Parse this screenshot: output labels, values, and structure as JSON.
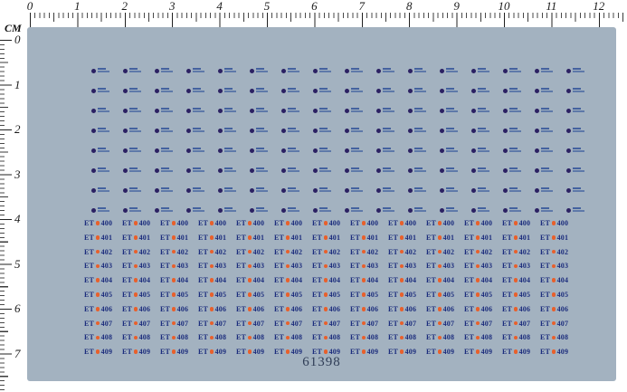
{
  "rulers": {
    "unit_label": "CM",
    "horizontal_numbers": [
      "0",
      "1",
      "2",
      "3",
      "4",
      "5",
      "6",
      "7",
      "8",
      "9",
      "10",
      "11",
      "12"
    ],
    "vertical_numbers": [
      "0",
      "1",
      "2",
      "3",
      "4",
      "5",
      "6",
      "7"
    ]
  },
  "sheet": {
    "bg_color": "#a3b2c0",
    "product_code": "61398"
  },
  "emblem_grid": {
    "rows": 8,
    "cols": 16,
    "dot_color": "#2b2163",
    "text_line_color": "#44629f"
  },
  "et_grid": {
    "prefix": "ET",
    "numbers": [
      "400",
      "401",
      "402",
      "403",
      "404",
      "405",
      "406",
      "407",
      "408",
      "409"
    ],
    "cols": 13,
    "dot_color": "#e8602c",
    "text_color": "#1c2d7d"
  }
}
